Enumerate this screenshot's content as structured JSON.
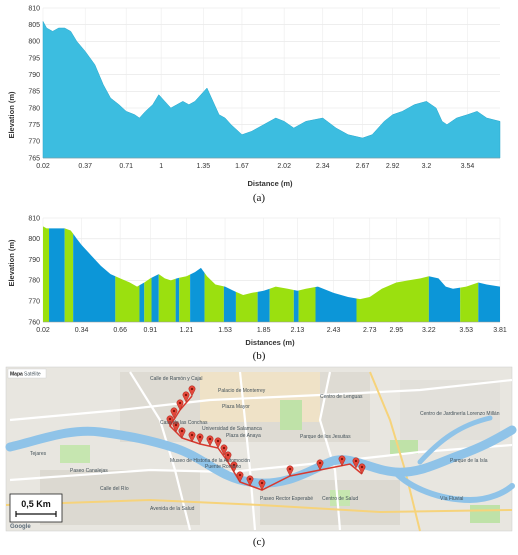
{
  "chart_data": [
    {
      "type": "area",
      "panel_label": "(a)",
      "xlabel": "Distance (m)",
      "ylabel": "Elevation (m)",
      "ylim": [
        765,
        810
      ],
      "yticks": [
        "810",
        "805",
        "800",
        "795",
        "790",
        "785",
        "780",
        "775",
        "770",
        "765"
      ],
      "xticks": [
        "0.02",
        "0.37",
        "0.71",
        "1",
        "1.35",
        "1.67",
        "2.02",
        "2.34",
        "2.67",
        "2.92",
        "3.2",
        "3.54"
      ],
      "fill_color": "#3cbde0",
      "grid": true,
      "profile": [
        [
          0.02,
          806
        ],
        [
          0.05,
          804
        ],
        [
          0.1,
          803
        ],
        [
          0.15,
          804
        ],
        [
          0.2,
          804
        ],
        [
          0.25,
          803
        ],
        [
          0.3,
          800
        ],
        [
          0.37,
          797
        ],
        [
          0.45,
          793
        ],
        [
          0.52,
          787
        ],
        [
          0.58,
          783
        ],
        [
          0.65,
          781
        ],
        [
          0.71,
          779
        ],
        [
          0.78,
          778
        ],
        [
          0.82,
          777
        ],
        [
          0.87,
          779
        ],
        [
          0.93,
          781
        ],
        [
          0.98,
          784
        ],
        [
          1.03,
          782
        ],
        [
          1.08,
          780
        ],
        [
          1.13,
          781
        ],
        [
          1.18,
          782
        ],
        [
          1.23,
          781
        ],
        [
          1.28,
          782
        ],
        [
          1.33,
          784
        ],
        [
          1.38,
          786
        ],
        [
          1.43,
          782
        ],
        [
          1.48,
          778
        ],
        [
          1.53,
          777
        ],
        [
          1.58,
          775
        ],
        [
          1.67,
          772
        ],
        [
          1.75,
          773
        ],
        [
          1.85,
          775
        ],
        [
          1.95,
          777
        ],
        [
          2.02,
          776
        ],
        [
          2.1,
          774
        ],
        [
          2.2,
          776
        ],
        [
          2.34,
          777
        ],
        [
          2.45,
          774
        ],
        [
          2.55,
          772
        ],
        [
          2.67,
          771
        ],
        [
          2.75,
          772
        ],
        [
          2.85,
          776
        ],
        [
          2.92,
          778
        ],
        [
          3.0,
          779
        ],
        [
          3.1,
          781
        ],
        [
          3.2,
          782
        ],
        [
          3.28,
          780
        ],
        [
          3.33,
          776
        ],
        [
          3.37,
          775
        ],
        [
          3.45,
          777
        ],
        [
          3.54,
          778
        ],
        [
          3.62,
          779
        ],
        [
          3.7,
          777
        ],
        [
          3.81,
          776
        ]
      ]
    },
    {
      "type": "area",
      "panel_label": "(b)",
      "xlabel": "Distances (m)",
      "ylabel": "Elevation (m)",
      "ylim": [
        760,
        810
      ],
      "yticks": [
        "810",
        "800",
        "790",
        "780",
        "770",
        "760"
      ],
      "xticks": [
        "0.02",
        "0.34",
        "0.66",
        "0.91",
        "1.21",
        "1.53",
        "1.85",
        "2.13",
        "2.43",
        "2.73",
        "2.95",
        "3.22",
        "3.53",
        "3.81"
      ],
      "colors": [
        "#9be00f",
        "#0c96d8"
      ],
      "grid": true,
      "segment_breaks": [
        0.02,
        0.07,
        0.2,
        0.27,
        0.62,
        0.82,
        0.86,
        0.92,
        0.98,
        1.12,
        1.15,
        1.24,
        1.36,
        1.52,
        1.62,
        1.8,
        1.9,
        2.1,
        2.14,
        2.28,
        2.62,
        3.22,
        3.48,
        3.63,
        3.81
      ],
      "profile": [
        [
          0.02,
          806
        ],
        [
          0.05,
          805
        ],
        [
          0.1,
          805
        ],
        [
          0.15,
          805
        ],
        [
          0.2,
          805
        ],
        [
          0.25,
          804
        ],
        [
          0.3,
          800
        ],
        [
          0.34,
          797
        ],
        [
          0.42,
          792
        ],
        [
          0.5,
          787
        ],
        [
          0.58,
          783
        ],
        [
          0.66,
          781
        ],
        [
          0.74,
          779
        ],
        [
          0.8,
          777
        ],
        [
          0.86,
          779
        ],
        [
          0.91,
          781
        ],
        [
          0.98,
          783
        ],
        [
          1.03,
          781
        ],
        [
          1.08,
          780
        ],
        [
          1.13,
          781
        ],
        [
          1.21,
          782
        ],
        [
          1.28,
          784
        ],
        [
          1.33,
          786
        ],
        [
          1.38,
          782
        ],
        [
          1.45,
          778
        ],
        [
          1.53,
          777
        ],
        [
          1.6,
          775
        ],
        [
          1.68,
          773
        ],
        [
          1.75,
          774
        ],
        [
          1.85,
          775
        ],
        [
          1.95,
          777
        ],
        [
          2.05,
          776
        ],
        [
          2.13,
          775
        ],
        [
          2.2,
          776
        ],
        [
          2.3,
          777
        ],
        [
          2.43,
          774
        ],
        [
          2.55,
          772
        ],
        [
          2.65,
          771
        ],
        [
          2.73,
          772
        ],
        [
          2.83,
          776
        ],
        [
          2.95,
          779
        ],
        [
          3.05,
          780
        ],
        [
          3.15,
          781
        ],
        [
          3.22,
          782
        ],
        [
          3.3,
          781
        ],
        [
          3.36,
          777
        ],
        [
          3.42,
          776
        ],
        [
          3.53,
          777
        ],
        [
          3.63,
          779
        ],
        [
          3.7,
          778
        ],
        [
          3.81,
          777
        ]
      ]
    }
  ],
  "map": {
    "panel_label": "(c)",
    "controls": [
      "Mapa",
      "Satélite"
    ],
    "scale_label": "0,5 Km",
    "attribution": "Google",
    "labels": [
      "Calle de Ramón y Cajal",
      "Palacio de Monterrey",
      "Plaza Mayor",
      "Casa de las Conchas",
      "Universidad de Salamanca",
      "Plaza de Anaya",
      "Museo de Historia de la Automoción",
      "Puente Romano",
      "Parque de los Jesuitas",
      "Centro de Lenguas",
      "Centro de Salud",
      "Paseo Canalejas",
      "Paseo Rector Esperabé",
      "Avenida de la Salud",
      "Centro de Jardinería Lorenzo Millán",
      "Parque de la Isla",
      "Vía Fluvial",
      "Tejares",
      "Calle del Río"
    ]
  }
}
